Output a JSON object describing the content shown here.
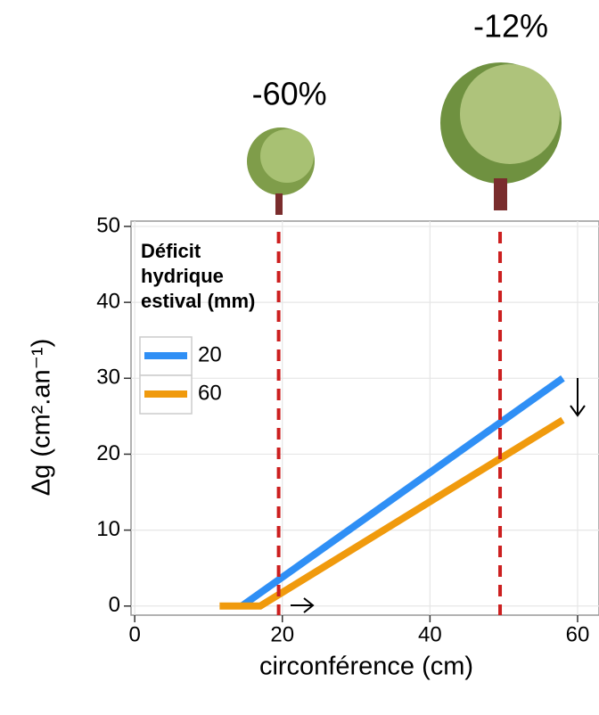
{
  "chart_data": {
    "type": "line",
    "xlabel": "circonférence (cm)",
    "ylabel": "Δg (cm².an⁻¹)",
    "xlim": [
      -0.5,
      62.9
    ],
    "ylim": [
      -1.2,
      50.7
    ],
    "xticks": [
      0,
      20,
      40,
      60
    ],
    "yticks": [
      0,
      10,
      20,
      30,
      40,
      50
    ],
    "grid": true,
    "legend_title": [
      "Déficit",
      "hydrique",
      "estival (mm)"
    ],
    "legend_position": "top-left",
    "series": [
      {
        "name": "20",
        "color": "#2f8ff5",
        "x": [
          14.5,
          58
        ],
        "values": [
          0,
          30
        ]
      },
      {
        "name": "60",
        "color": "#f09a0d",
        "x": [
          11.5,
          17,
          58
        ],
        "values": [
          0,
          0,
          24.5
        ]
      }
    ],
    "vlines": [
      {
        "x": 19.5,
        "color": "#cc1f1f"
      },
      {
        "x": 49.5,
        "color": "#cc1f1f"
      }
    ],
    "annotations": [
      "-60%",
      "-12%"
    ]
  }
}
